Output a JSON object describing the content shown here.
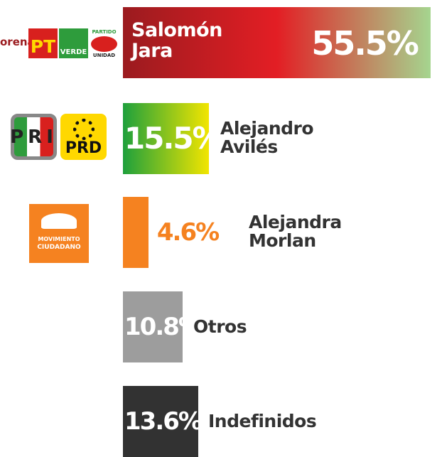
{
  "chart_data": {
    "type": "bar",
    "orientation": "horizontal",
    "categories": [
      "Salomón Jara",
      "Alejandro Avilés",
      "Alejandra Morlan",
      "Otros",
      "Indefinidos"
    ],
    "values": [
      55.5,
      15.5,
      4.6,
      10.8,
      13.6
    ],
    "value_labels": [
      "55.5%",
      "15.5%",
      "4.6%",
      "10.8%",
      "13.6%"
    ],
    "colors": [
      [
        "#9b1b1f",
        "#e31e24",
        "#a5d58f"
      ],
      [
        "#1ea03c",
        "#f2e500"
      ],
      [
        "#f58220"
      ],
      [
        "#9d9d9d"
      ],
      [
        "#323232"
      ]
    ]
  },
  "logos": [
    [
      "orena",
      "PT",
      "VERDE",
      "PARTIDO",
      "UNIDAD"
    ],
    [
      "PRI",
      "PRD"
    ],
    [
      "MOVIMIENTO",
      "CIUDADANO"
    ]
  ]
}
